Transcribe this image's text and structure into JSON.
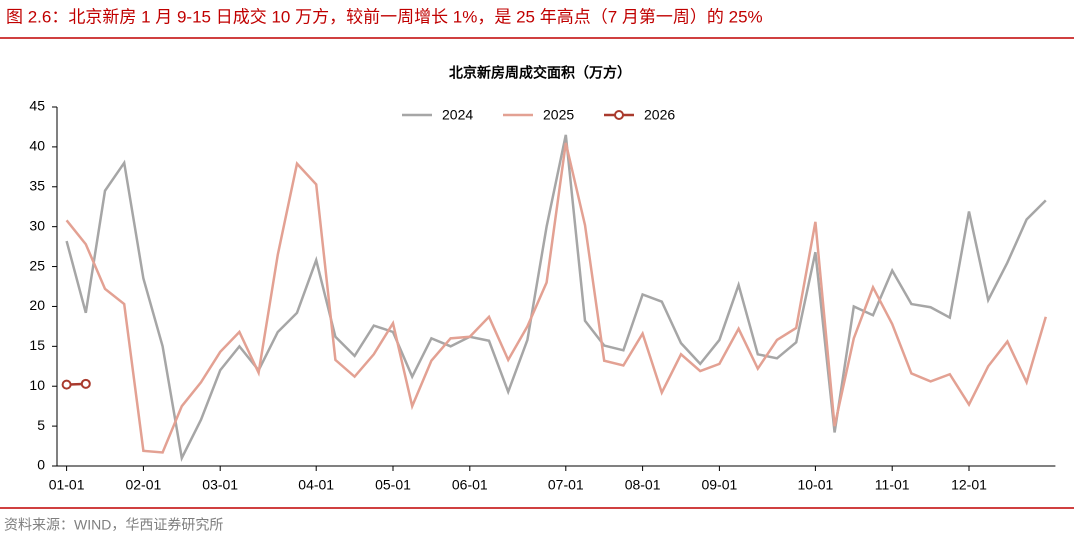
{
  "figure_title": "图 2.6：北京新房 1 月 9-15 日成交 10 万方，较前一周增长 1%，是 25 年高点（7 月第一周）的 25%",
  "source": "资料来源：WIND，华西证券研究所",
  "chart_data": {
    "type": "line",
    "title": "北京新房周成交面积（万方）",
    "categories": [
      "01-01",
      null,
      null,
      null,
      "02-01",
      null,
      null,
      null,
      "03-01",
      null,
      null,
      null,
      null,
      "04-01",
      null,
      null,
      null,
      "05-01",
      null,
      null,
      null,
      "06-01",
      null,
      null,
      null,
      null,
      "07-01",
      null,
      null,
      null,
      "08-01",
      null,
      null,
      null,
      "09-01",
      null,
      null,
      null,
      null,
      "10-01",
      null,
      null,
      null,
      "11-01",
      null,
      null,
      null,
      "12-01",
      null,
      null,
      null,
      null
    ],
    "series": [
      {
        "name": "2024",
        "color": "#a6a6a6",
        "values": [
          28.2,
          19.2,
          34.5,
          38,
          23.5,
          15,
          1,
          5.8,
          12,
          15,
          12,
          16.8,
          19.2,
          25.8,
          16.2,
          13.8,
          17.6,
          16.8,
          11.2,
          16,
          15,
          16.2,
          15.7,
          9.3,
          15.8,
          30,
          41.5,
          18.2,
          15.1,
          14.5,
          21.5,
          20.6,
          15.4,
          12.8,
          15.8,
          22.7,
          14,
          13.5,
          15.5,
          26.8,
          4.2,
          20,
          18.9,
          24.5,
          20.3,
          19.9,
          18.6,
          31.9,
          20.8,
          25.5,
          30.9,
          33.3
        ]
      },
      {
        "name": "2025",
        "color": "#e3a193",
        "values": [
          30.8,
          27.8,
          22.2,
          20.3,
          1.9,
          1.7,
          7.5,
          10.5,
          14.3,
          16.8,
          11.7,
          26.5,
          37.9,
          35.3,
          13.3,
          11.2,
          14,
          17.9,
          7.5,
          13.2,
          16,
          16.2,
          18.7,
          13.3,
          17.5,
          23,
          40.5,
          30.2,
          13.2,
          12.6,
          16.6,
          9.2,
          14,
          11.9,
          12.8,
          17.2,
          12.2,
          15.8,
          17.3,
          30.6,
          5,
          16,
          22.4,
          17.8,
          11.6,
          10.6,
          11.5,
          7.7,
          12.5,
          15.6,
          10.5,
          18.7
        ]
      },
      {
        "name": "2026",
        "color": "#a93a2d",
        "marker": true,
        "values": [
          10.2,
          10.3,
          null,
          null,
          null,
          null,
          null,
          null,
          null,
          null,
          null,
          null,
          null,
          null,
          null,
          null,
          null,
          null,
          null,
          null,
          null,
          null,
          null,
          null,
          null,
          null,
          null,
          null,
          null,
          null,
          null,
          null,
          null,
          null,
          null,
          null,
          null,
          null,
          null,
          null,
          null,
          null,
          null,
          null,
          null,
          null,
          null,
          null,
          null,
          null,
          null,
          null
        ]
      }
    ],
    "ylim": [
      0,
      45
    ],
    "yticks": [
      0,
      5,
      10,
      15,
      20,
      25,
      30,
      35,
      40,
      45
    ],
    "grid": false,
    "legend": "top"
  }
}
